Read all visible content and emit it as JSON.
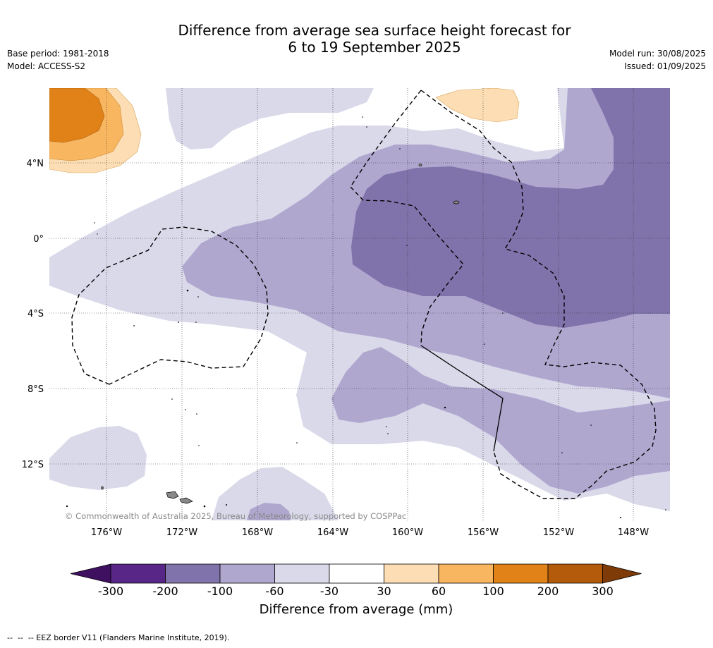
{
  "title_line1": "Difference from average sea surface height forecast for",
  "title_line2": "6 to 19 September 2025",
  "base_period": "Base period: 1981-2018",
  "model": "Model: ACCESS-S2",
  "model_run": "Model run: 30/08/2025",
  "issued": "Issued: 01/09/2025",
  "copyright": "© Commonwealth of Australia 2025, Bureau of Meteorology, supported by COSPPac",
  "lat_labels": [
    "4°N",
    "0°",
    "4°S",
    "8°S",
    "12°S"
  ],
  "lon_labels": [
    "176°W",
    "172°W",
    "168°W",
    "164°W",
    "160°W",
    "156°W",
    "152°W",
    "148°W"
  ],
  "colorbar": {
    "title": "Difference from average (mm)",
    "ticks": [
      "-300",
      "-200",
      "-100",
      "-60",
      "-30",
      "30",
      "60",
      "100",
      "200",
      "300"
    ],
    "colors": [
      "#3f1060",
      "#582686",
      "#8073ab",
      "#b0a7cf",
      "#d9d9ea",
      "#ffffff",
      "#fddeb4",
      "#f8b661",
      "#e08217",
      "#b45b0b",
      "#7f3b07"
    ]
  },
  "footer": "--  --  -- EEZ border V11 (Flanders Marine Institute, 2019)."
}
